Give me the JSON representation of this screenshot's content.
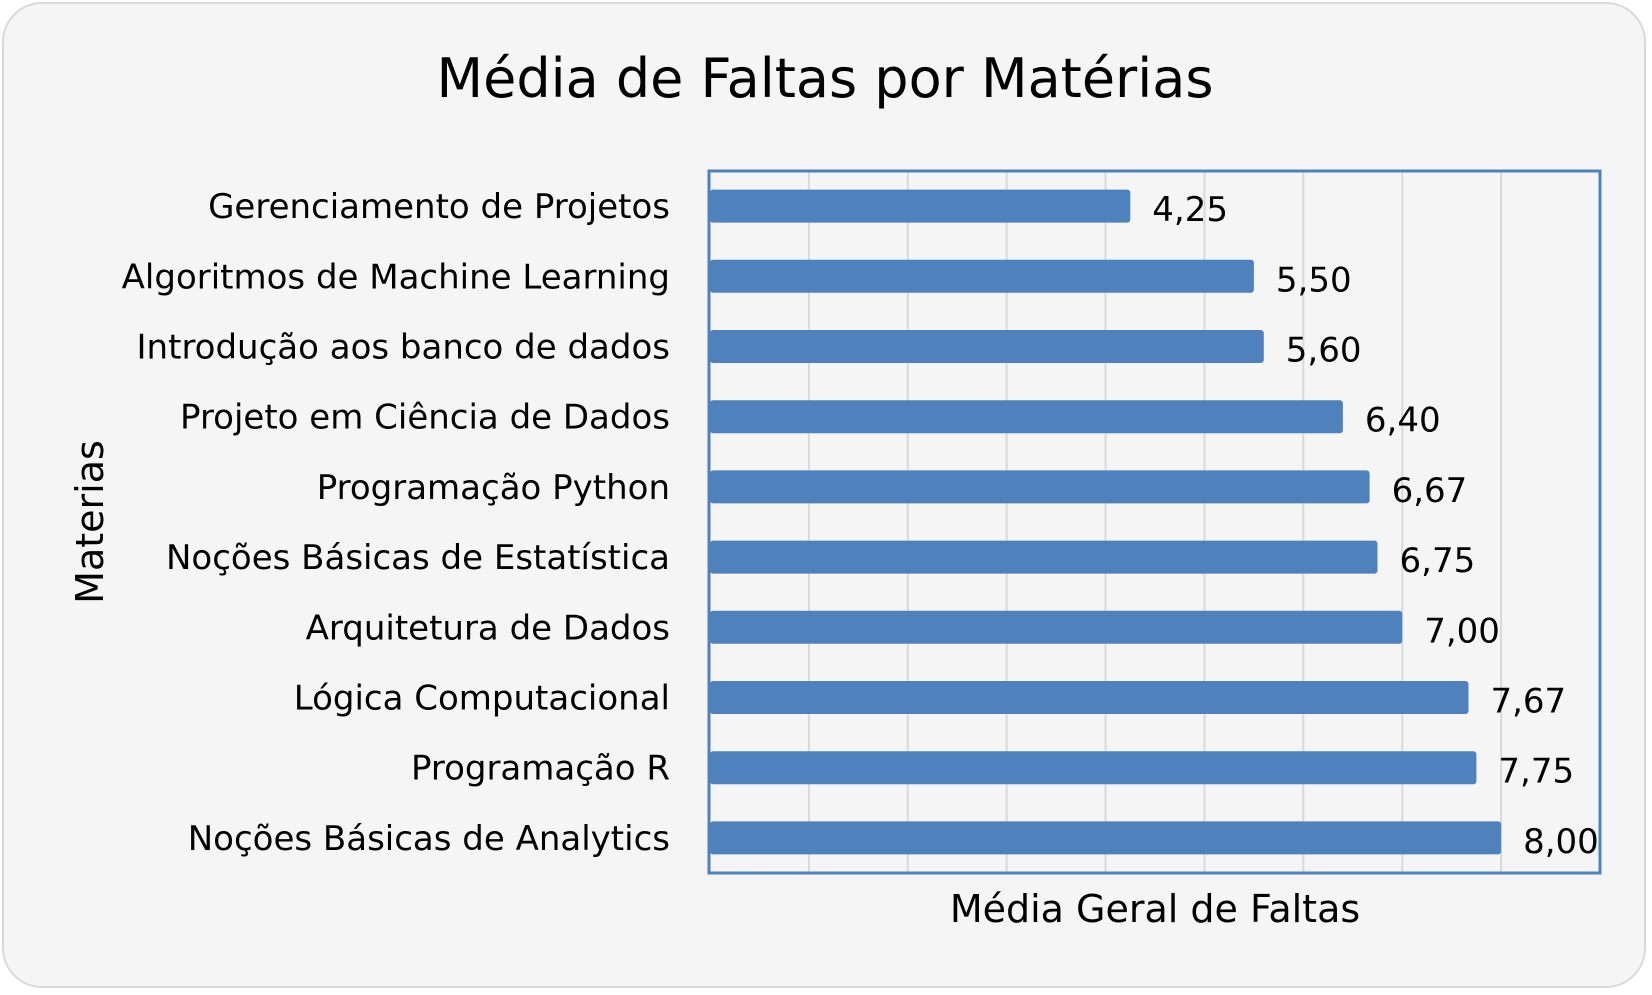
{
  "chart_data": {
    "type": "bar",
    "orientation": "horizontal",
    "title": "Média de Faltas por Matérias",
    "xlabel": "Média Geral de Faltas",
    "ylabel": "Materias",
    "categories": [
      "Gerenciamento de Projetos",
      "Algoritmos de Machine Learning",
      "Introdução aos banco de dados",
      "Projeto em Ciência de Dados",
      "Programação Python",
      "Noções Básicas de Estatística",
      "Arquitetura de Dados",
      "Lógica Computacional",
      "Programação R",
      "Noções Básicas de Analytics"
    ],
    "values": [
      4.25,
      5.5,
      5.6,
      6.4,
      6.67,
      6.75,
      7.0,
      7.67,
      7.75,
      8.0
    ],
    "data_labels": [
      "4,25",
      "5,50",
      "5,60",
      "6,40",
      "6,67",
      "6,75",
      "7,00",
      "7,67",
      "7,75",
      "8,00"
    ],
    "xlim": [
      0,
      9
    ],
    "x_tick_labels_shown": false,
    "grid": "vertical",
    "legend": "none",
    "colors": {
      "bar": "#4f81bd",
      "plot_border": "#4f81bd",
      "gridline": "#d9d9d9",
      "background": "#f5f5f5"
    }
  }
}
